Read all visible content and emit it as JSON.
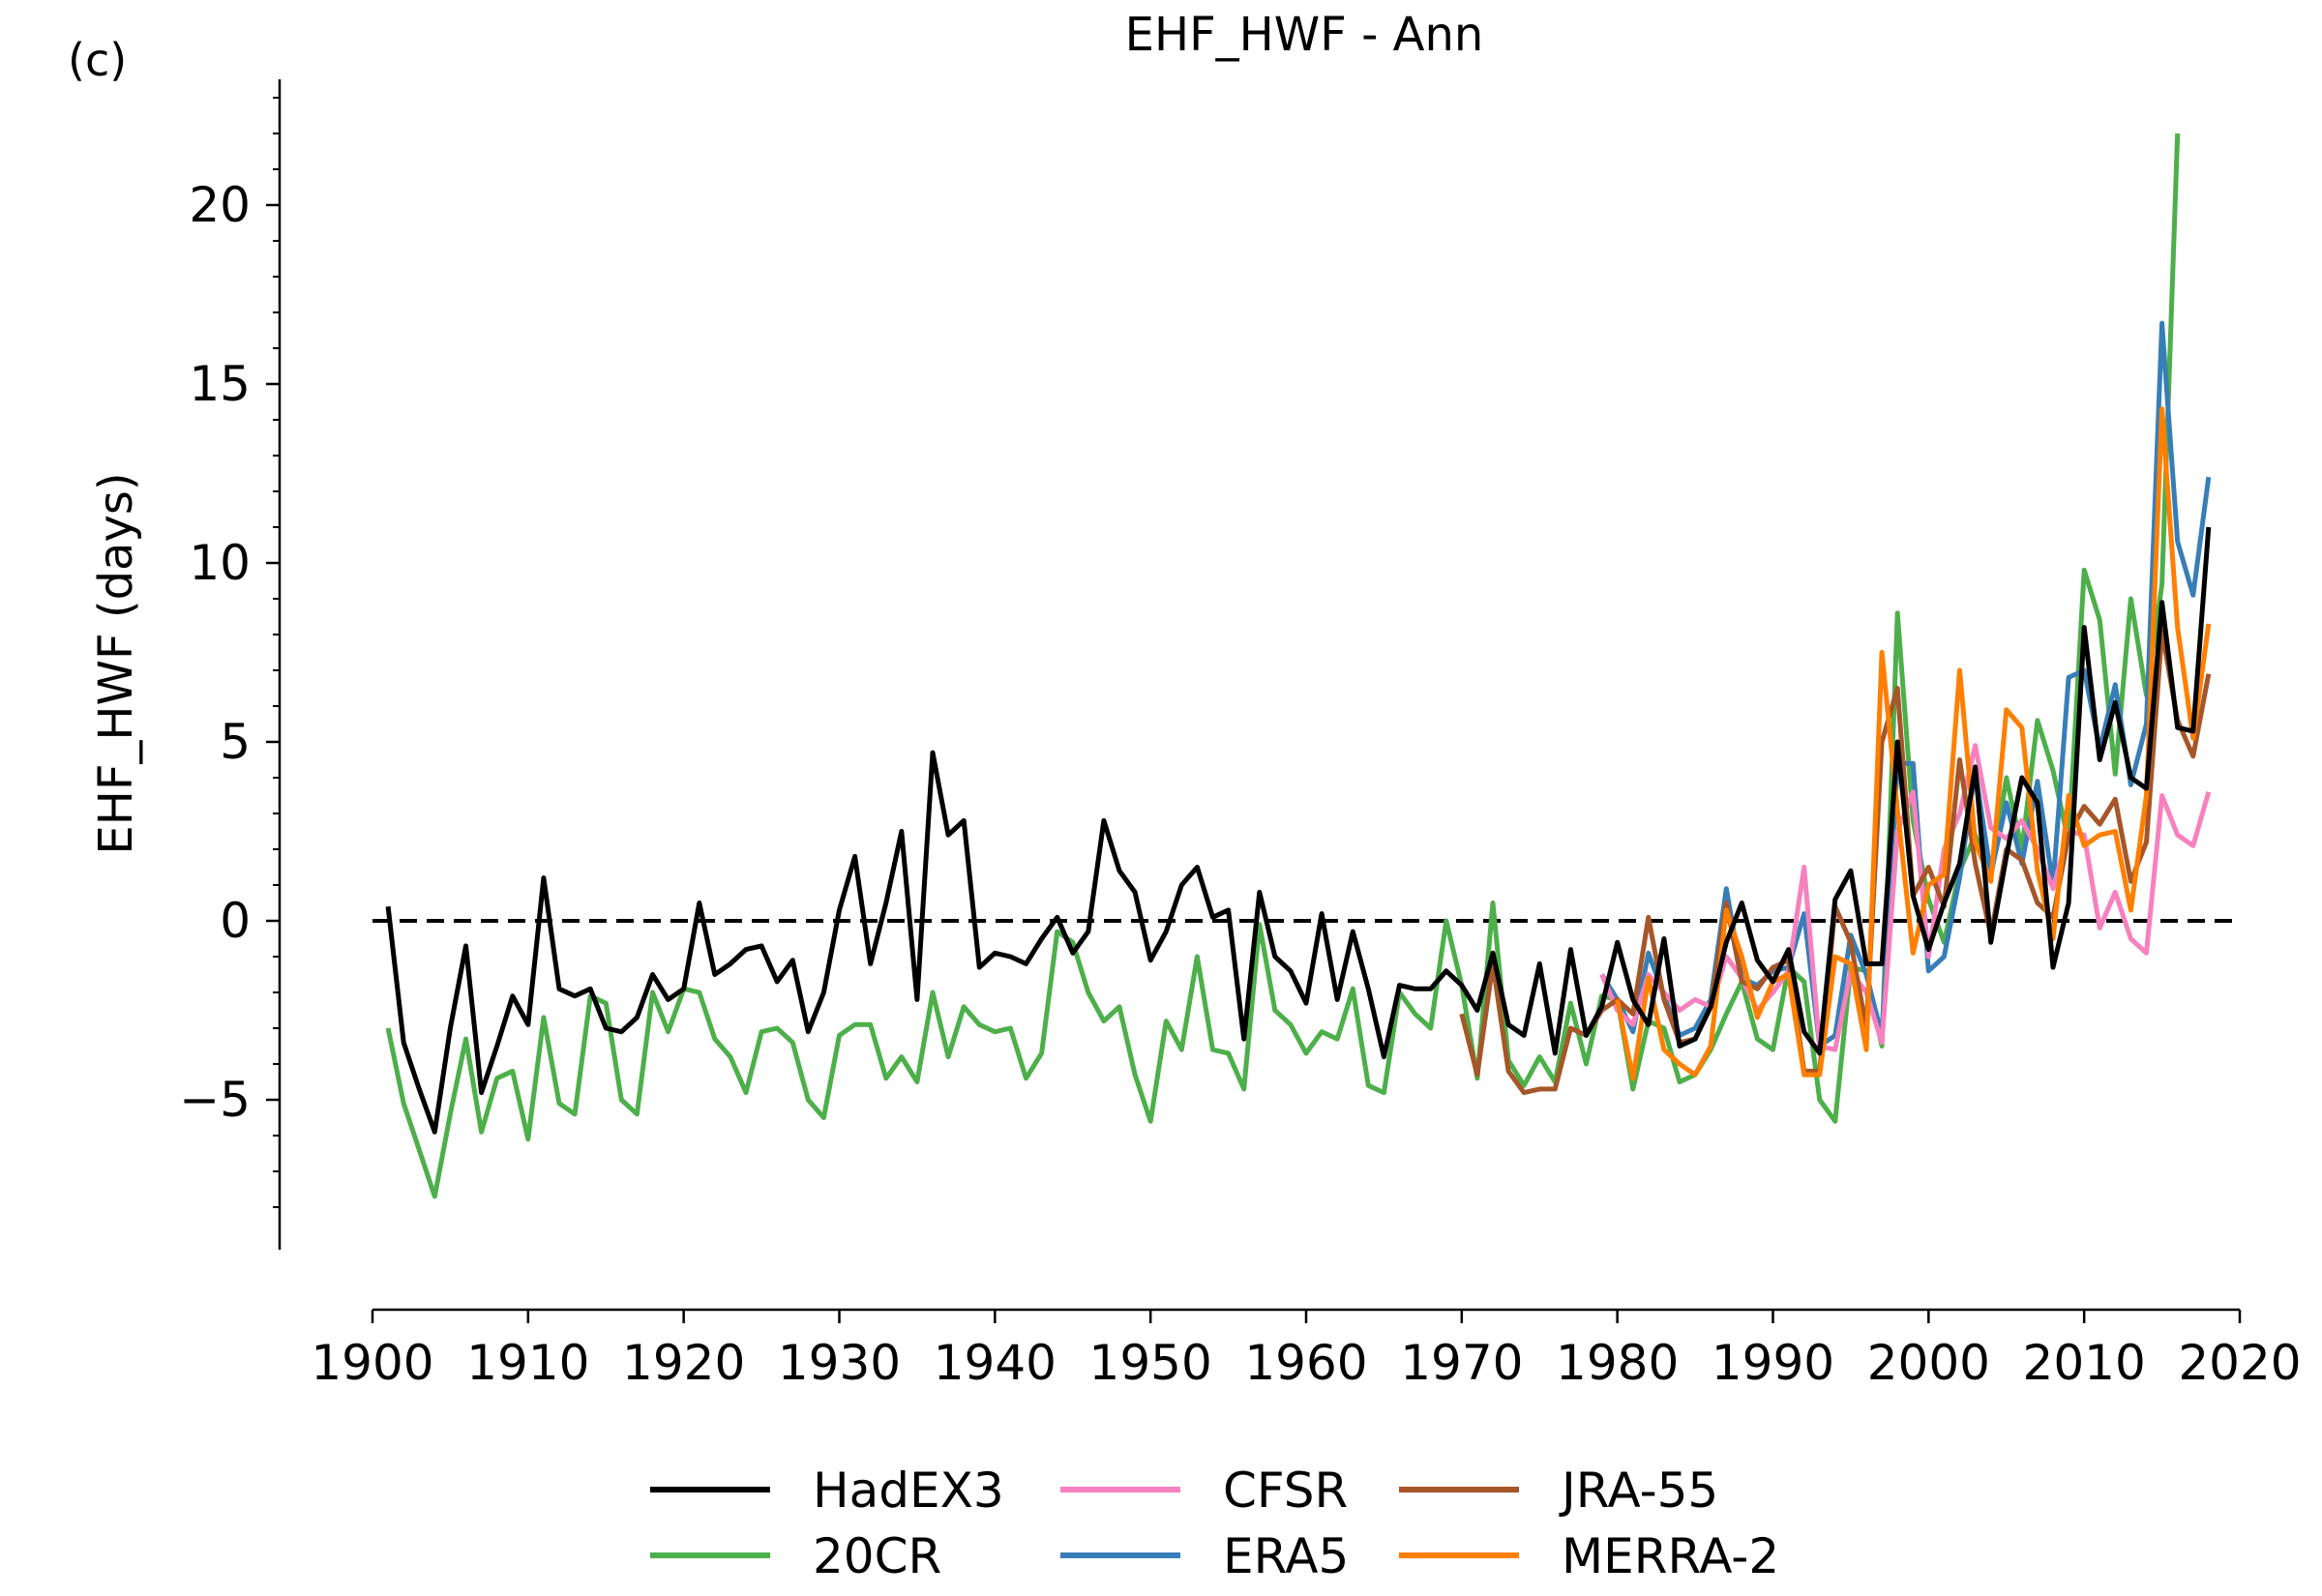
{
  "chart_data": {
    "type": "line",
    "panel_label": "(c)",
    "title": "EHF_HWF - Ann",
    "xlabel": "",
    "ylabel": "EHF_HWF (days)",
    "xlim": [
      1900,
      2020
    ],
    "ylim": [
      -9,
      23.5
    ],
    "x_ticks": [
      "1900",
      "1910",
      "1920",
      "1930",
      "1940",
      "1950",
      "1960",
      "1970",
      "1980",
      "1990",
      "2000",
      "2010",
      "2020"
    ],
    "y_ticks": [
      "−5",
      "0",
      "5",
      "10",
      "15",
      "20"
    ],
    "y_tick_values": [
      -5,
      0,
      5,
      10,
      15,
      20
    ],
    "zero_line": true,
    "legend_position": "bottom",
    "series": [
      {
        "name": "20CR",
        "color": "#4daf4a",
        "start": 1901,
        "values": [
          -3.0,
          -5.1,
          -6.4,
          -7.7,
          -5.4,
          -3.3,
          -5.9,
          -4.4,
          -4.2,
          -6.1,
          -2.7,
          -5.1,
          -5.4,
          -2.1,
          -2.3,
          -5.0,
          -5.4,
          -2.0,
          -3.1,
          -1.9,
          -2.0,
          -3.3,
          -3.8,
          -4.8,
          -3.1,
          -3.0,
          -3.4,
          -5.0,
          -5.5,
          -3.2,
          -2.9,
          -2.9,
          -4.4,
          -3.8,
          -4.5,
          -2.0,
          -3.8,
          -2.4,
          -2.9,
          -3.1,
          -3.0,
          -4.4,
          -3.7,
          -0.3,
          -0.6,
          -2.0,
          -2.8,
          -2.4,
          -4.3,
          -5.6,
          -2.8,
          -3.6,
          -1.0,
          -3.6,
          -3.7,
          -4.7,
          -0.1,
          -2.5,
          -2.9,
          -3.7,
          -3.1,
          -3.3,
          -1.9,
          -4.6,
          -4.8,
          -2.0,
          -2.6,
          -3.0,
          0.0,
          -1.8,
          -4.4,
          0.5,
          -3.9,
          -4.6,
          -3.8,
          -4.5,
          -2.3,
          -4.0,
          -2.1,
          -2.2,
          -4.7,
          -2.8,
          -3.0,
          -4.5,
          -4.3,
          -3.6,
          -2.6,
          -1.7,
          -3.3,
          -3.6,
          -1.3,
          -1.7,
          -5.0,
          -5.6,
          -1.3,
          -1.4,
          -3.5,
          8.6,
          2.8,
          0.6,
          -0.6,
          1.4,
          2.4,
          1.2,
          4.0,
          2.0,
          5.6,
          4.2,
          2.2,
          9.8,
          8.4,
          4.1,
          9.0,
          6.3,
          9.4,
          22.0
        ]
      },
      {
        "name": "ERA5",
        "color": "#377eb8",
        "start": 1979,
        "values": [
          -1.5,
          -2.2,
          -3.1,
          -0.9,
          -2.1,
          -3.2,
          -3.0,
          -2.2,
          0.9,
          -1.6,
          -1.8,
          -1.4,
          -1.3,
          0.2,
          -3.5,
          -3.2,
          -0.4,
          -1.5,
          -3.2,
          4.4,
          4.4,
          -1.4,
          -1.0,
          1.2,
          4.2,
          1.3,
          3.3,
          1.6,
          3.9,
          1.0,
          6.8,
          7.0,
          4.8,
          6.6,
          3.8,
          5.5,
          16.7,
          10.6,
          9.1,
          12.4
        ]
      },
      {
        "name": "CFSR",
        "color": "#f781bf",
        "start": 1979,
        "values": [
          -1.5,
          -2.5,
          -2.9,
          -1.5,
          -2.0,
          -2.5,
          -2.2,
          -2.4,
          -1.0,
          -1.6,
          -2.5,
          -2.0,
          -1.4,
          1.5,
          -3.5,
          -3.6,
          -1.4,
          -2.0,
          -3.4,
          2.5,
          3.6,
          -1.0,
          2.0,
          3.0,
          4.9,
          2.6,
          2.3,
          2.8,
          2.0,
          0.9,
          2.5,
          2.4,
          -0.2,
          0.8,
          -0.5,
          -0.9,
          3.5,
          2.4,
          2.1,
          3.6
        ]
      },
      {
        "name": "JRA-55",
        "color": "#a65628",
        "start": 1970,
        "values": [
          -2.6,
          -4.3,
          -1.2,
          -4.2,
          -4.8,
          -4.7,
          -4.7,
          -3.0,
          -3.2,
          -2.5,
          -2.2,
          -2.6,
          0.1,
          -2.2,
          -3.4,
          -3.3,
          -2.4,
          0.5,
          -1.7,
          -1.9,
          -1.3,
          -1.1,
          -4.2,
          -4.2,
          0.4,
          -0.6,
          -3.0,
          5.0,
          6.5,
          0.7,
          1.5,
          0.4,
          4.5,
          1.6,
          -0.4,
          2.0,
          1.7,
          0.5,
          0.1,
          2.4,
          3.2,
          2.7,
          3.4,
          1.1,
          2.2,
          8.1,
          5.6,
          4.6,
          6.9
        ]
      },
      {
        "name": "MERRA-2",
        "color": "#ff7f00",
        "start": 1980,
        "values": [
          -2.2,
          -4.4,
          -1.6,
          -3.6,
          -4.0,
          -4.3,
          -3.5,
          0.3,
          -1.0,
          -2.7,
          -1.7,
          -1.5,
          -4.3,
          -4.3,
          -1.0,
          -1.2,
          -3.6,
          7.5,
          3.1,
          -0.9,
          1.0,
          1.3,
          7.0,
          2.2,
          1.1,
          5.9,
          5.4,
          1.4,
          -0.5,
          3.5,
          2.1,
          2.4,
          2.5,
          0.3,
          3.5,
          14.3,
          8.2,
          5.1,
          8.3
        ]
      },
      {
        "name": "HadEX3",
        "color": "#000000",
        "start": 1901,
        "values": [
          0.4,
          -3.4,
          -4.7,
          -5.9,
          -3.0,
          -0.7,
          -4.8,
          -3.5,
          -2.1,
          -2.9,
          1.2,
          -1.9,
          -2.1,
          -1.9,
          -3.0,
          -3.1,
          -2.7,
          -1.5,
          -2.2,
          -1.9,
          0.5,
          -1.5,
          -1.2,
          -0.8,
          -0.7,
          -1.7,
          -1.1,
          -3.1,
          -2.0,
          0.3,
          1.8,
          -1.2,
          0.5,
          2.5,
          -2.2,
          4.7,
          2.4,
          2.8,
          -1.3,
          -0.9,
          -1.0,
          -1.2,
          -0.5,
          0.1,
          -0.9,
          -0.3,
          2.8,
          1.4,
          0.8,
          -1.1,
          -0.3,
          1.0,
          1.5,
          0.1,
          0.3,
          -3.3,
          0.8,
          -1.0,
          -1.4,
          -2.3,
          0.2,
          -2.2,
          -0.3,
          -1.9,
          -3.8,
          -1.8,
          -1.9,
          -1.9,
          -1.4,
          -1.8,
          -2.5,
          -0.9,
          -2.9,
          -3.2,
          -1.2,
          -3.7,
          -0.8,
          -3.2,
          -2.4,
          -0.6,
          -2.2,
          -2.9,
          -0.5,
          -3.5,
          -3.3,
          -2.4,
          -0.6,
          0.5,
          -1.1,
          -1.7,
          -0.8,
          -3.1,
          -3.7,
          0.6,
          1.4,
          -1.2,
          -1.2,
          5.0,
          0.7,
          -0.8,
          0.5,
          1.6,
          4.3,
          -0.6,
          1.8,
          4.0,
          3.3,
          -1.3,
          0.5,
          8.2,
          4.5,
          6.1,
          4.0,
          3.7,
          8.9,
          5.4,
          5.3,
          11.0
        ]
      }
    ],
    "legend_layout": [
      [
        "HadEX3",
        "CFSR",
        "JRA-55"
      ],
      [
        "20CR",
        "ERA5",
        "MERRA-2"
      ]
    ]
  }
}
